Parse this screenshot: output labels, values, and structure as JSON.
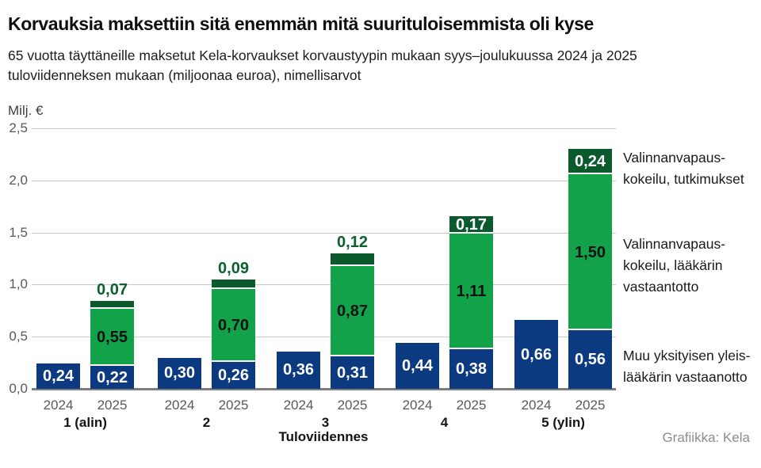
{
  "header": {
    "title": "Korvauksia maksettiin sitä enemmän mitä suurituloisemmista oli kyse",
    "subtitle_lines": [
      "65 vuotta täyttäneille maksetut Kela-korvaukset korvaustyypin mukaan syys–joulukuussa 2024 ja 2025",
      "tuloviidenneksen mukaan (miljoonaa euroa), nimellisarvot"
    ]
  },
  "chart_data": {
    "type": "bar",
    "stacked": true,
    "title": "Korvauksia maksettiin sitä enemmän mitä suurituloisemmista oli kyse",
    "unit_label": "Milj. €",
    "xlabel": "Tuloviidennes",
    "categories": [
      "1 (alin)",
      "2",
      "3",
      "4",
      "5 (ylin)"
    ],
    "bar_years": [
      "2024",
      "2025"
    ],
    "ylim": [
      0,
      2.5
    ],
    "ytick_labels": [
      "0,0",
      "0,5",
      "1,0",
      "1,5",
      "2,0",
      "2,5"
    ],
    "grid": "horizontal",
    "legend_position": "right",
    "decimal_separator": ",",
    "series": [
      {
        "name": "Muu yksityisen yleislääkärin vastaanotto",
        "color": "#0b3a80",
        "label_color": "#ffffff",
        "values": {
          "2024": [
            0.24,
            0.3,
            0.36,
            0.44,
            0.66
          ],
          "2025": [
            0.22,
            0.26,
            0.31,
            0.38,
            0.56
          ]
        }
      },
      {
        "name": "Valinnanvapauskokeilu, lääkärin vastaantotto",
        "color": "#11a24a",
        "label_color": "#111111",
        "values": {
          "2024": [
            0,
            0,
            0,
            0,
            0
          ],
          "2025": [
            0.55,
            0.7,
            0.87,
            1.11,
            1.5
          ]
        }
      },
      {
        "name": "Valinnanvapauskokeilu, tutkimukset",
        "color": "#0a5a2d",
        "label_color": "#ffffff",
        "values": {
          "2024": [
            0,
            0,
            0,
            0,
            0
          ],
          "2025": [
            0.07,
            0.09,
            0.12,
            0.17,
            0.24
          ]
        }
      }
    ],
    "legend": [
      {
        "series": "Valinnanvapauskokeilu, tutkimukset",
        "lines": [
          "Valinnanvapaus-",
          "kokeilu, tutkimukset"
        ]
      },
      {
        "series": "Valinnanvapauskokeilu, lääkärin vastaantotto",
        "lines": [
          "Valinnanvapaus-",
          "kokeilu, lääkärin",
          "vastaantotto"
        ]
      },
      {
        "series": "Muu yksityisen yleislääkärin vastaanotto",
        "lines": [
          "Muu yksityisen yleis-",
          "lääkärin vastaanotto"
        ]
      }
    ],
    "outside_label_color": "#0a612f",
    "grid_color": "#c9c9c9",
    "baseline_color": "#7d7d7d"
  },
  "footer": {
    "credit": "Grafiikka: Kela"
  }
}
